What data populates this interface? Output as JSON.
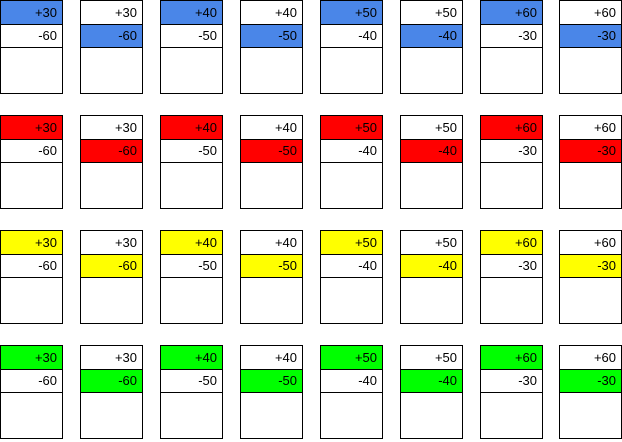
{
  "colors": {
    "blue": "#4a86e8",
    "red": "#ff0000",
    "yellow": "#ffff00",
    "green": "#00ff00"
  },
  "rows": [
    {
      "color": "blue",
      "cards": [
        {
          "top": "+30",
          "bottom": "-60",
          "highlight": "top"
        },
        {
          "top": "+30",
          "bottom": "-60",
          "highlight": "bottom"
        },
        {
          "top": "+40",
          "bottom": "-50",
          "highlight": "top"
        },
        {
          "top": "+40",
          "bottom": "-50",
          "highlight": "bottom"
        },
        {
          "top": "+50",
          "bottom": "-40",
          "highlight": "top"
        },
        {
          "top": "+50",
          "bottom": "-40",
          "highlight": "bottom"
        },
        {
          "top": "+60",
          "bottom": "-30",
          "highlight": "top"
        },
        {
          "top": "+60",
          "bottom": "-30",
          "highlight": "bottom"
        }
      ]
    },
    {
      "color": "red",
      "cards": [
        {
          "top": "+30",
          "bottom": "-60",
          "highlight": "top"
        },
        {
          "top": "+30",
          "bottom": "-60",
          "highlight": "bottom"
        },
        {
          "top": "+40",
          "bottom": "-50",
          "highlight": "top"
        },
        {
          "top": "+40",
          "bottom": "-50",
          "highlight": "bottom"
        },
        {
          "top": "+50",
          "bottom": "-40",
          "highlight": "top"
        },
        {
          "top": "+50",
          "bottom": "-40",
          "highlight": "bottom"
        },
        {
          "top": "+60",
          "bottom": "-30",
          "highlight": "top"
        },
        {
          "top": "+60",
          "bottom": "-30",
          "highlight": "bottom"
        }
      ]
    },
    {
      "color": "yellow",
      "cards": [
        {
          "top": "+30",
          "bottom": "-60",
          "highlight": "top"
        },
        {
          "top": "+30",
          "bottom": "-60",
          "highlight": "bottom"
        },
        {
          "top": "+40",
          "bottom": "-50",
          "highlight": "top"
        },
        {
          "top": "+40",
          "bottom": "-50",
          "highlight": "bottom"
        },
        {
          "top": "+50",
          "bottom": "-40",
          "highlight": "top"
        },
        {
          "top": "+50",
          "bottom": "-40",
          "highlight": "bottom"
        },
        {
          "top": "+60",
          "bottom": "-30",
          "highlight": "top"
        },
        {
          "top": "+60",
          "bottom": "-30",
          "highlight": "bottom"
        }
      ]
    },
    {
      "color": "green",
      "cards": [
        {
          "top": "+30",
          "bottom": "-60",
          "highlight": "top"
        },
        {
          "top": "+30",
          "bottom": "-60",
          "highlight": "bottom"
        },
        {
          "top": "+40",
          "bottom": "-50",
          "highlight": "top"
        },
        {
          "top": "+40",
          "bottom": "-50",
          "highlight": "bottom"
        },
        {
          "top": "+50",
          "bottom": "-40",
          "highlight": "top"
        },
        {
          "top": "+50",
          "bottom": "-40",
          "highlight": "bottom"
        },
        {
          "top": "+60",
          "bottom": "-30",
          "highlight": "top"
        },
        {
          "top": "+60",
          "bottom": "-30",
          "highlight": "bottom"
        }
      ]
    }
  ]
}
